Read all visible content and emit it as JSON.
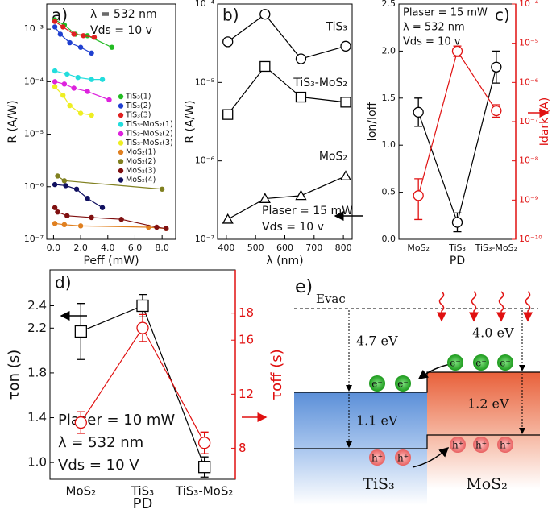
{
  "chart_data": [
    {
      "type": "line",
      "label": "a)",
      "annotations": [
        "λ = 532 nm",
        "Vds = 10 v"
      ],
      "xlabel": "Peff (mW)",
      "ylabel": "R (A/W)",
      "ylog": true,
      "xlim": [
        -0.5,
        9.0
      ],
      "xticks": [
        {
          "value": 0,
          "label": "0.0"
        },
        {
          "value": 2,
          "label": "2.0"
        },
        {
          "value": 4,
          "label": "4.0"
        },
        {
          "value": 6,
          "label": "6.0"
        },
        {
          "value": 8,
          "label": "8.0"
        }
      ],
      "ylim": [
        1e-07,
        0.003
      ],
      "yticks": [
        {
          "value": 1e-07,
          "label": "10⁻⁷"
        },
        {
          "value": 1e-06,
          "label": "10⁻⁶"
        },
        {
          "value": 1e-05,
          "label": "10⁻⁵"
        },
        {
          "value": 0.0001,
          "label": "10⁻⁴"
        },
        {
          "value": 0.001,
          "label": "10⁻³"
        }
      ],
      "legend": "right",
      "series": [
        {
          "name": "TiS₃(1)",
          "color": "#22bb22",
          "x": [
            0.1,
            0.8,
            1.6,
            2.5,
            4.3
          ],
          "values": [
            0.0015,
            0.0012,
            0.0008,
            0.00075,
            0.00045
          ]
        },
        {
          "name": "TiS₃(2)",
          "color": "#1f3fd0",
          "x": [
            0.1,
            0.5,
            1.2,
            2.0,
            2.8
          ],
          "values": [
            0.0011,
            0.0008,
            0.00055,
            0.00045,
            0.00035
          ]
        },
        {
          "name": "TiS₃(3)",
          "color": "#e02020",
          "x": [
            0.1,
            0.7,
            1.5,
            2.2,
            3.0
          ],
          "values": [
            0.0014,
            0.0011,
            0.0008,
            0.00075,
            0.0007
          ]
        },
        {
          "name": "TiS₃-MoS₂(1)",
          "color": "#22dddd",
          "x": [
            0.1,
            1.0,
            1.8,
            2.8,
            3.6
          ],
          "values": [
            0.00016,
            0.00014,
            0.00012,
            0.00011,
            0.00011
          ]
        },
        {
          "name": "TiS₃-MoS₂(2)",
          "color": "#dd22dd",
          "x": [
            0.1,
            0.8,
            1.5,
            2.5,
            4.1
          ],
          "values": [
            0.0001,
            9e-05,
            7.5e-05,
            6.5e-05,
            4.5e-05
          ]
        },
        {
          "name": "TiS₃-MoS₂(3)",
          "color": "#eeee22",
          "x": [
            0.1,
            0.7,
            1.2,
            2.0,
            2.8
          ],
          "values": [
            8e-05,
            5.5e-05,
            3.5e-05,
            2.5e-05,
            2.3e-05
          ]
        },
        {
          "name": "MoS₂(1)",
          "color": "#e08020",
          "x": [
            0.1,
            0.8,
            2.0,
            7.0,
            8.3
          ],
          "values": [
            2e-07,
            1.9e-07,
            1.8e-07,
            1.7e-07,
            1.6e-07
          ]
        },
        {
          "name": "MoS₂(2)",
          "color": "#808020",
          "x": [
            0.3,
            0.8,
            8.0
          ],
          "values": [
            1.6e-06,
            1.3e-06,
            9e-07
          ]
        },
        {
          "name": "MoS₂(3)",
          "color": "#801010",
          "x": [
            0.1,
            0.3,
            1.0,
            2.8,
            5.0,
            7.6,
            8.3
          ],
          "values": [
            4e-07,
            3.3e-07,
            2.8e-07,
            2.6e-07,
            2.4e-07,
            1.7e-07,
            1.6e-07
          ]
        },
        {
          "name": "MoS₂(4)",
          "color": "#101060",
          "x": [
            0.1,
            0.9,
            1.7,
            2.5,
            3.6
          ],
          "values": [
            1.1e-06,
            1.05e-06,
            9e-07,
            6e-07,
            4e-07
          ]
        }
      ]
    },
    {
      "type": "line",
      "label": "b)",
      "annotations": [
        "Plaser = 15 mW",
        "Vds = 10 v"
      ],
      "xlabel": "λ (nm)",
      "ylabel": "R (A/W)",
      "ylog": true,
      "x": [
        405,
        532,
        655,
        808
      ],
      "xlim": [
        370,
        830
      ],
      "xticks": [
        400,
        500,
        600,
        700,
        800
      ],
      "ylim": [
        1e-07,
        0.0001
      ],
      "yticks": [
        {
          "value": 1e-07,
          "label": "10⁻⁷"
        },
        {
          "value": 1e-06,
          "label": "10⁻⁶"
        },
        {
          "value": 1e-05,
          "label": "10⁻⁵"
        },
        {
          "value": 0.0001,
          "label": "10⁻⁴"
        }
      ],
      "series_labels": true,
      "series": [
        {
          "name": "TiS₃",
          "color": "#000000",
          "marker": "circle",
          "values": [
            3.3e-05,
            7.4e-05,
            2e-05,
            2.9e-05
          ]
        },
        {
          "name": "TiS₃-MoS₂",
          "color": "#000000",
          "marker": "square",
          "values": [
            3.9e-06,
            1.6e-05,
            6.5e-06,
            5.6e-06
          ]
        },
        {
          "name": "MoS₂",
          "color": "#000000",
          "marker": "triangle",
          "values": [
            1.8e-07,
            3.3e-07,
            3.6e-07,
            6.4e-07
          ]
        }
      ]
    },
    {
      "type": "line",
      "label": "c)",
      "annotations": [
        "Plaser = 15 mW",
        "λ = 532 nm",
        "Vds = 10 v"
      ],
      "xlabel": "PD",
      "ylabel": "Ion/Ioff",
      "y2label": "Idark (A)",
      "categories": [
        "MoS₂",
        "TiS₃",
        "TiS₃-MoS₂"
      ],
      "ylim": [
        0,
        2.5
      ],
      "yticks": [
        {
          "value": 0,
          "label": "0.0"
        },
        0.5,
        {
          "value": 1,
          "label": "1.0"
        },
        1.5,
        {
          "value": 2,
          "label": "2.0"
        },
        2.5
      ],
      "y2log": true,
      "y2lim": [
        1e-10,
        0.0001
      ],
      "y2ticks": [
        {
          "value": 1e-10,
          "label": "10⁻¹⁰"
        },
        {
          "value": 1e-09,
          "label": "10⁻⁹"
        },
        {
          "value": 1e-08,
          "label": "10⁻⁸"
        },
        {
          "value": 1e-07,
          "label": "10⁻⁷"
        },
        {
          "value": 1e-06,
          "label": "10⁻⁶"
        },
        {
          "value": 1e-05,
          "label": "10⁻⁵"
        },
        {
          "value": 0.0001,
          "label": "10⁻⁴"
        }
      ],
      "y2color": "#e01010",
      "series": [
        {
          "color": "#000000",
          "marker": "circle",
          "values": [
            1.35,
            0.18,
            1.83
          ],
          "errors": [
            0.15,
            0.1,
            0.17
          ]
        },
        {
          "color": "#e01010",
          "marker": "circle",
          "axis": "y2",
          "values": [
            1.3e-09,
            6.3e-06,
            1.9e-07
          ],
          "lower": [
            3.2e-10,
            4.6e-06,
            1.3e-07
          ],
          "upper": [
            3.5e-09,
            8.5e-06,
            2.7e-07
          ]
        }
      ]
    },
    {
      "type": "line",
      "label": "d)",
      "annotations": [
        "Plaser = 10 mW",
        "λ = 532 nm",
        "Vds = 10 V"
      ],
      "xlabel": "PD",
      "ylabel": "τon (s)",
      "y2label": "τoff (s)",
      "categories": [
        "MoS₂",
        "TiS₃",
        "TiS₃-MoS₂"
      ],
      "ylim": [
        0.85,
        2.72
      ],
      "yticks": [
        {
          "value": 1,
          "label": "1.0"
        },
        1.4,
        1.8,
        2.2,
        2.4
      ],
      "y2lim": [
        5.7,
        21.2
      ],
      "y2ticks": [
        8,
        12,
        16,
        18
      ],
      "y2color": "#e01010",
      "series": [
        {
          "color": "#000000",
          "marker": "square",
          "values": [
            2.17,
            2.4,
            0.96
          ],
          "errors": [
            0.25,
            0.1,
            0.09
          ]
        },
        {
          "color": "#e01010",
          "marker": "circle",
          "axis": "y2",
          "values": [
            9.9,
            16.9,
            8.4
          ],
          "errors": [
            0.8,
            1.0,
            0.8
          ]
        }
      ]
    }
  ],
  "diagram": {
    "label": "e)",
    "vacuum": "Evac",
    "gaps": [
      "4.7 eV",
      "4.0 eV",
      "1.1 eV",
      "1.2 eV"
    ],
    "materials": [
      "TiS₃",
      "MoS₂"
    ],
    "electron": "e⁻",
    "hole": "h⁺"
  }
}
